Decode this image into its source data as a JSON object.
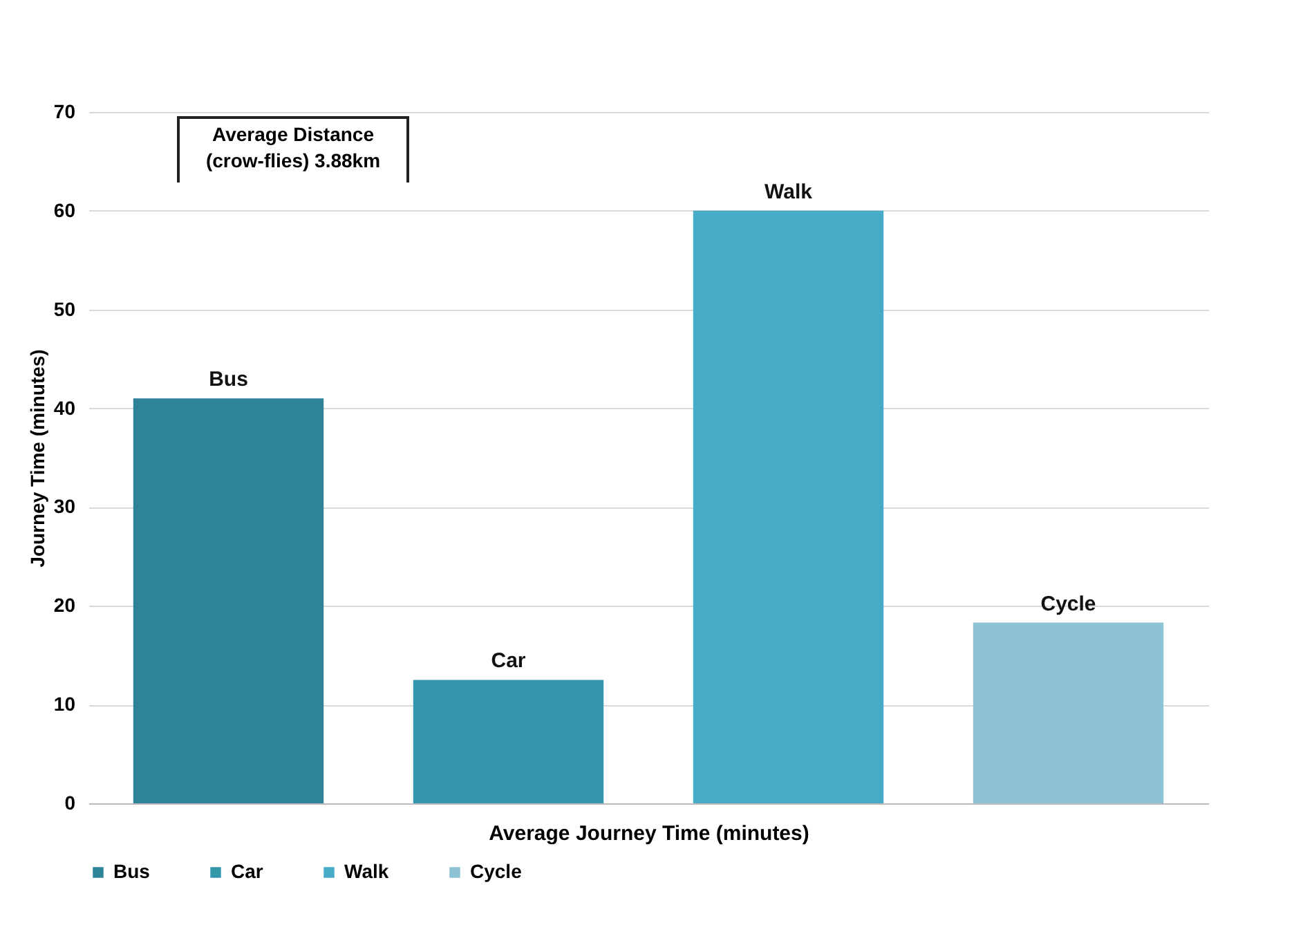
{
  "chart_data": {
    "type": "bar",
    "xlabel": "Average Journey Time (minutes)",
    "ylabel": "Journey Time (minutes)",
    "categories": [
      null
    ],
    "series": [
      {
        "name": "Bus",
        "color": "#2f8399",
        "values": [
          41
        ]
      },
      {
        "name": "Car",
        "color": "#3597ab",
        "values": [
          12.5
        ]
      },
      {
        "name": "Walk",
        "color": "#47aac6",
        "values": [
          60
        ]
      },
      {
        "name": "Cycle",
        "color": "#8ec3d4",
        "values": [
          18.3
        ]
      }
    ],
    "annotations": [
      "Average Distance (crow-flies) 3.88km"
    ],
    "ylim": [
      0,
      70
    ],
    "yticks": [
      0,
      10,
      20,
      30,
      40,
      50,
      60,
      70
    ],
    "grid": "y",
    "legend": "bottom"
  }
}
